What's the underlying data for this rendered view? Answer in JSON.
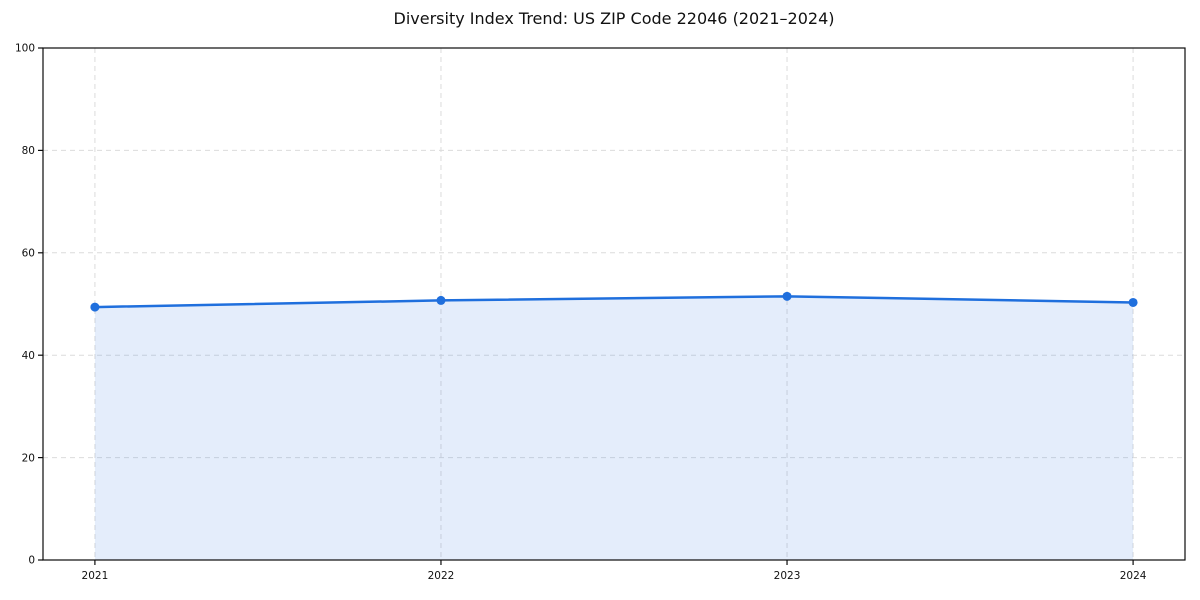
{
  "page": {
    "background": "#ffffff"
  },
  "chart_data": {
    "type": "area",
    "title": "Diversity Index Trend: US ZIP Code 22046 (2021–2024)",
    "xlabel": "",
    "ylabel": "",
    "x": [
      2021,
      2022,
      2023,
      2024
    ],
    "x_tick_labels": [
      "2021",
      "2022",
      "2023",
      "2024"
    ],
    "series": [
      {
        "name": "Diversity Index",
        "values": [
          49.4,
          50.7,
          51.5,
          50.3
        ]
      }
    ],
    "ylim": [
      0,
      100
    ],
    "yticks": [
      0,
      20,
      40,
      60,
      80,
      100
    ],
    "y_tick_labels": [
      "0",
      "20",
      "40",
      "60",
      "80",
      "100"
    ],
    "grid": "dashed",
    "legend_position": "none",
    "marker": "circle",
    "colors": {
      "line": "#1f6fdd",
      "marker": "#1f6fdd",
      "fill": "rgba(31,111,221,0.12)",
      "grid": "#dcdcdc",
      "spine": "#0a0a0a",
      "tick_label": "#111111",
      "title": "#111111",
      "background": "#ffffff"
    }
  }
}
